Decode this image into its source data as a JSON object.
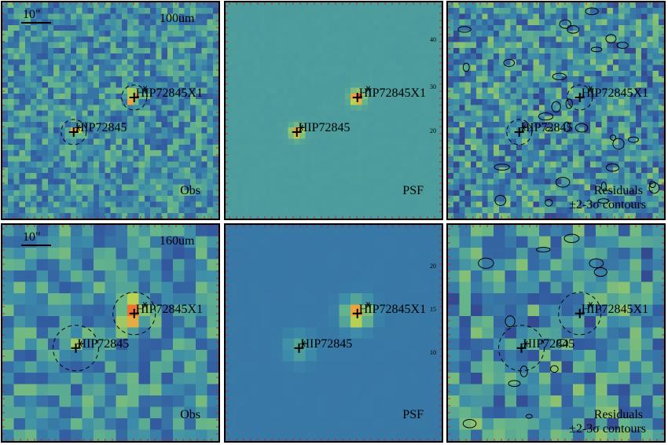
{
  "colors": {
    "background": "#ffffff",
    "frame": "#000000",
    "tick_marks": "#cc2222"
  },
  "rows": [
    {
      "band": "100um",
      "scale_bar": "10\"",
      "panels": [
        {
          "kind": "observed",
          "label": "Obs",
          "label2": ""
        },
        {
          "kind": "psf_model",
          "label": "PSF",
          "label2": ""
        },
        {
          "kind": "residual",
          "label": "Residuals",
          "label2": "±2-3σ contours"
        }
      ],
      "sources": [
        {
          "name": "HIP72845X1",
          "cross_x_frac": 0.61,
          "cross_y_frac": 0.44,
          "star_dx": 0.05,
          "star_dy": -0.04,
          "circle": true
        },
        {
          "name": "HIP72845",
          "cross_x_frac": 0.33,
          "cross_y_frac": 0.6,
          "star_dx": 0.02,
          "star_dy": -0.02,
          "circle": true
        }
      ],
      "y_ticks": [
        "20",
        "30",
        "40"
      ]
    },
    {
      "band": "160um",
      "scale_bar": "10\"",
      "panels": [
        {
          "kind": "observed",
          "label": "Obs",
          "label2": ""
        },
        {
          "kind": "psf_model",
          "label": "PSF",
          "label2": ""
        },
        {
          "kind": "residual",
          "label": "Residuals",
          "label2": "±2-3σ contours"
        }
      ],
      "sources": [
        {
          "name": "HIP72845X1",
          "cross_x_frac": 0.61,
          "cross_y_frac": 0.41,
          "star_dx": 0.05,
          "star_dy": -0.04,
          "circle": true
        },
        {
          "name": "HIP72845",
          "cross_x_frac": 0.34,
          "cross_y_frac": 0.57,
          "star_dx": 0.02,
          "star_dy": -0.02,
          "circle": true
        }
      ],
      "y_ticks": [
        "10",
        "15",
        "20",
        "25"
      ]
    }
  ]
}
